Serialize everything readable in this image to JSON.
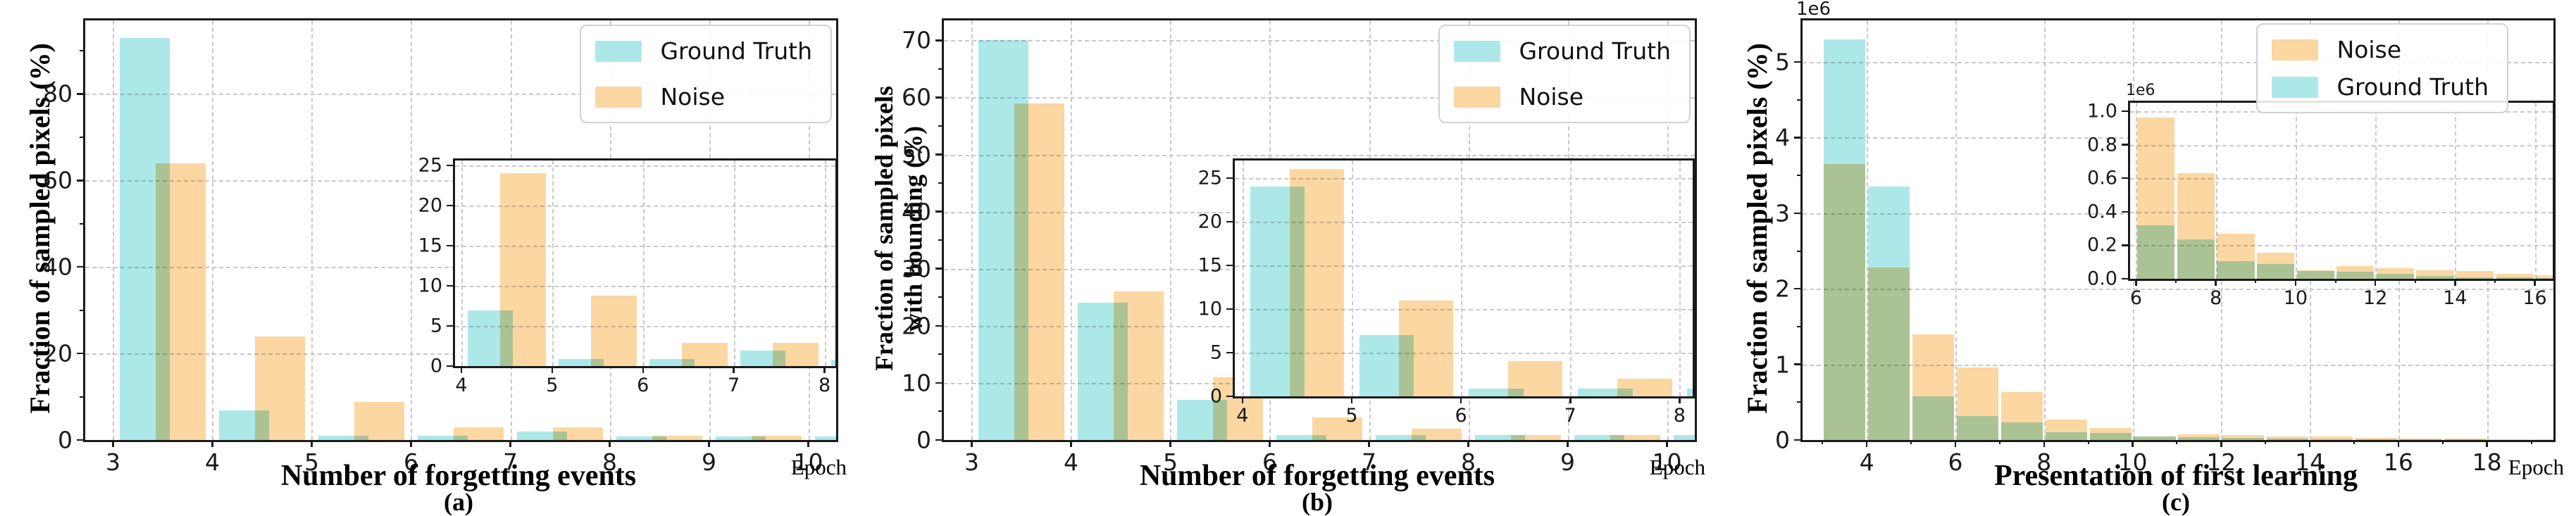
{
  "figure": {
    "background": "#ffffff",
    "grid_color": "#c9c9c9",
    "spine_color": "#1a1a1a",
    "overlap_blend": "multiply"
  },
  "chart_data": [
    {
      "type": "bar",
      "caption": "(a)",
      "xlabel": "Number of forgetting events",
      "ylabel": "Fraction of sampled pixels (%)",
      "corner_label": "Epoch",
      "y_exponent": "",
      "xlim": [
        2.72,
        10.28
      ],
      "ylim": [
        0,
        97
      ],
      "categories": [
        3,
        4,
        5,
        6,
        7,
        8,
        9,
        10
      ],
      "xtick_values": [
        3,
        4,
        5,
        6,
        7,
        8,
        9,
        10
      ],
      "xtick_labels": [
        "3",
        "4",
        "5",
        "6",
        "7",
        "8",
        "9",
        "10"
      ],
      "xminor_values": [],
      "ytick_values": [
        0,
        20,
        40,
        60,
        80
      ],
      "ytick_labels": [
        "0",
        "20",
        "40",
        "60",
        "80"
      ],
      "yminor_values": [
        10,
        30,
        50,
        70,
        90
      ],
      "bar": {
        "width": 0.5,
        "offsets": [
          0.07,
          0.43
        ]
      },
      "series": [
        {
          "name": "Ground Truth",
          "color": "#ade8e9",
          "values": [
            93,
            6.9,
            0.9,
            0.9,
            1.9,
            0.8,
            0.8,
            0.8
          ]
        },
        {
          "name": "Noise",
          "color": "#fcd7a2",
          "values": [
            64,
            24,
            8.8,
            2.9,
            2.9,
            0.9,
            0.9,
            0.9
          ]
        }
      ],
      "legend": {
        "entries": [
          "Ground Truth",
          "Noise"
        ],
        "position": "top-right"
      },
      "inset": {
        "xlim": [
          3.93,
          8.12
        ],
        "ylim": [
          0,
          25.6
        ],
        "categories": [
          4,
          5,
          6,
          7,
          8
        ],
        "xtick_values": [
          4,
          5,
          6,
          7,
          8
        ],
        "xtick_labels": [
          "4",
          "5",
          "6",
          "7",
          "8"
        ],
        "xminor_values": [],
        "ytick_values": [
          0,
          5,
          10,
          15,
          20,
          25
        ],
        "ytick_labels": [
          "0",
          "5",
          "10",
          "15",
          "20",
          "25"
        ],
        "yminor_values": [],
        "y_exponent": "",
        "bar": {
          "width": 0.5,
          "offsets": [
            0.07,
            0.43
          ]
        },
        "series": [
          {
            "name": "Ground Truth",
            "color": "#ade8e9",
            "values": [
              6.9,
              0.9,
              0.9,
              1.9,
              0.8
            ]
          },
          {
            "name": "Noise",
            "color": "#fcd7a2",
            "values": [
              24,
              8.8,
              2.9,
              2.9,
              0.9
            ]
          }
        ]
      }
    },
    {
      "type": "bar",
      "caption": "(b)",
      "xlabel": "Number of forgetting events",
      "ylabel": "Fraction of sampled pixels\nwith bounding (%)",
      "corner_label": "Epoch",
      "y_exponent": "",
      "xlim": [
        2.72,
        10.28
      ],
      "ylim": [
        0,
        73.5
      ],
      "categories": [
        3,
        4,
        5,
        6,
        7,
        8,
        9,
        10
      ],
      "xtick_values": [
        3,
        4,
        5,
        6,
        7,
        8,
        9,
        10
      ],
      "xtick_labels": [
        "3",
        "4",
        "5",
        "6",
        "7",
        "8",
        "9",
        "10"
      ],
      "xminor_values": [],
      "ytick_values": [
        0,
        10,
        20,
        30,
        40,
        50,
        60,
        70
      ],
      "ytick_labels": [
        "0",
        "10",
        "20",
        "30",
        "40",
        "50",
        "60",
        "70"
      ],
      "yminor_values": [
        5,
        15,
        25,
        35,
        45,
        55,
        65
      ],
      "bar": {
        "width": 0.5,
        "offsets": [
          0.07,
          0.43
        ]
      },
      "series": [
        {
          "name": "Ground Truth",
          "color": "#ade8e9",
          "values": [
            70,
            24,
            7,
            0.9,
            0.9,
            0.9,
            0.9,
            0.9
          ]
        },
        {
          "name": "Noise",
          "color": "#fcd7a2",
          "values": [
            59,
            26,
            11,
            4,
            2,
            0.9,
            0.9,
            0.9
          ]
        }
      ],
      "legend": {
        "entries": [
          "Ground Truth",
          "Noise"
        ],
        "position": "top-right"
      },
      "inset": {
        "xlim": [
          3.93,
          8.12
        ],
        "ylim": [
          0,
          27
        ],
        "categories": [
          4,
          5,
          6,
          7,
          8
        ],
        "xtick_values": [
          4,
          5,
          6,
          7,
          8
        ],
        "xtick_labels": [
          "4",
          "5",
          "6",
          "7",
          "8"
        ],
        "xminor_values": [],
        "ytick_values": [
          0,
          5,
          10,
          15,
          20,
          25
        ],
        "ytick_labels": [
          "0",
          "5",
          "10",
          "15",
          "20",
          "25"
        ],
        "yminor_values": [],
        "y_exponent": "",
        "bar": {
          "width": 0.5,
          "offsets": [
            0.07,
            0.43
          ]
        },
        "series": [
          {
            "name": "Ground Truth",
            "color": "#ade8e9",
            "values": [
              24,
              7,
              0.9,
              0.9,
              0.9
            ]
          },
          {
            "name": "Noise",
            "color": "#fcd7a2",
            "values": [
              26,
              11,
              4,
              2,
              0.9
            ]
          }
        ]
      }
    },
    {
      "type": "bar",
      "caption": "(c)",
      "xlabel": "Presentation of first learning",
      "ylabel": "Fraction of sampled pixels (%)",
      "corner_label": "Epoch",
      "y_exponent": "1e6",
      "y_unit": 1000000,
      "xlim": [
        2.55,
        19.5
      ],
      "ylim": [
        0,
        5.55
      ],
      "categories": [
        3,
        4,
        5,
        6,
        7,
        8,
        9,
        10,
        11,
        12,
        13,
        14,
        15,
        16,
        17,
        18,
        19
      ],
      "xtick_values": [
        4,
        6,
        8,
        10,
        12,
        14,
        16,
        18
      ],
      "xtick_labels": [
        "4",
        "6",
        "8",
        "10",
        "12",
        "14",
        "16",
        "18"
      ],
      "xminor_values": [
        3,
        5,
        7,
        9,
        11,
        13,
        15,
        17,
        19
      ],
      "ytick_values": [
        0,
        1,
        2,
        3,
        4,
        5
      ],
      "ytick_labels": [
        "0",
        "1",
        "2",
        "3",
        "4",
        "5"
      ],
      "yminor_values": [
        0.5,
        1.5,
        2.5,
        3.5,
        4.5
      ],
      "bar": {
        "width": 0.94,
        "offsets": [
          0.03,
          0.03
        ]
      },
      "series": [
        {
          "name": "Ground Truth",
          "color": "#ade8e9",
          "values": [
            5.3,
            3.35,
            0.58,
            0.32,
            0.235,
            0.105,
            0.09,
            0.045,
            0.04,
            0.03,
            0.015,
            0.01,
            0.008,
            0.006,
            0.005,
            0.004,
            0.003
          ]
        },
        {
          "name": "Noise",
          "color": "#fcd7a2",
          "values": [
            3.65,
            2.28,
            1.4,
            0.96,
            0.63,
            0.27,
            0.155,
            0.05,
            0.075,
            0.065,
            0.05,
            0.045,
            0.03,
            0.02,
            0.015,
            0.01,
            0.008
          ]
        }
      ],
      "legend": {
        "entries": [
          "Noise",
          "Ground Truth"
        ],
        "position": "top-right"
      },
      "inset": {
        "xlim": [
          5.85,
          16.45
        ],
        "ylim": [
          0,
          1.05
        ],
        "categories": [
          6,
          7,
          8,
          9,
          10,
          11,
          12,
          13,
          14,
          15,
          16
        ],
        "xtick_values": [
          6,
          8,
          10,
          12,
          14,
          16
        ],
        "xtick_labels": [
          "6",
          "8",
          "10",
          "12",
          "14",
          "16"
        ],
        "xminor_values": [
          7,
          9,
          11,
          13,
          15
        ],
        "ytick_values": [
          0,
          0.2,
          0.4,
          0.6,
          0.8,
          1.0
        ],
        "ytick_labels": [
          "0.0",
          "0.2",
          "0.4",
          "0.6",
          "0.8",
          "1.0"
        ],
        "yminor_values": [],
        "y_exponent": "1e6",
        "bar": {
          "width": 0.94,
          "offsets": [
            0.03,
            0.03
          ]
        },
        "series": [
          {
            "name": "Ground Truth",
            "color": "#ade8e9",
            "values": [
              0.32,
              0.235,
              0.105,
              0.09,
              0.045,
              0.04,
              0.03,
              0.015,
              0.01,
              0.008,
              0.006
            ]
          },
          {
            "name": "Noise",
            "color": "#fcd7a2",
            "values": [
              0.96,
              0.63,
              0.27,
              0.155,
              0.05,
              0.075,
              0.065,
              0.05,
              0.045,
              0.03,
              0.02
            ]
          }
        ]
      }
    }
  ]
}
